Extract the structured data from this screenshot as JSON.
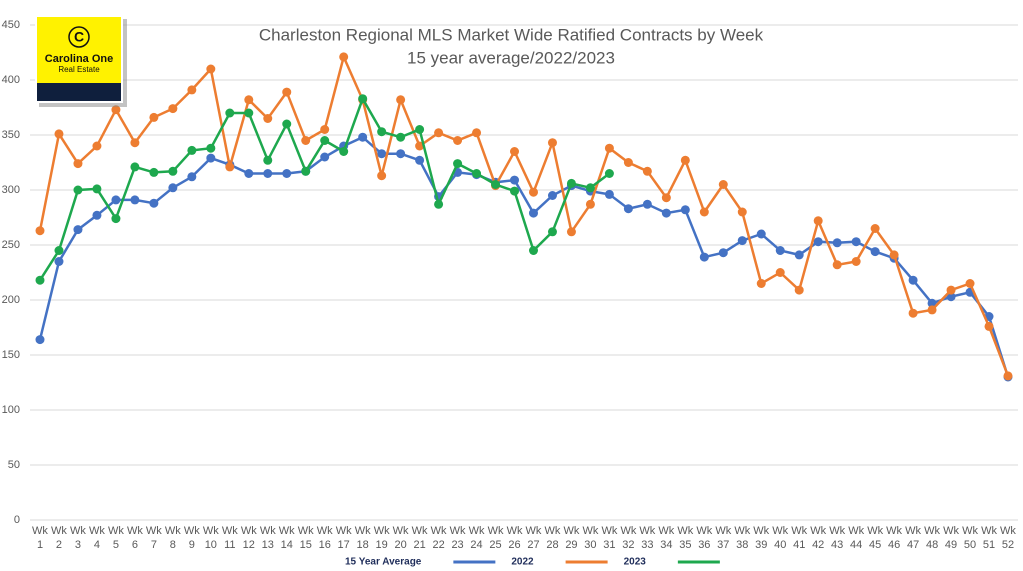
{
  "logo": {
    "mark": "C",
    "name": "Carolina One",
    "tagline": "Real Estate"
  },
  "chart_data": {
    "type": "line",
    "title": "Charleston Regional MLS Market Wide Ratified Contracts by Week",
    "subtitle": "15 year average/2022/2023",
    "categories": [
      "Wk 1",
      "Wk 2",
      "Wk 3",
      "Wk 4",
      "Wk 5",
      "Wk 6",
      "Wk 7",
      "Wk 8",
      "Wk 9",
      "Wk 10",
      "Wk 11",
      "Wk 12",
      "Wk 13",
      "Wk 14",
      "Wk 15",
      "Wk 16",
      "Wk 17",
      "Wk 18",
      "Wk 19",
      "Wk 20",
      "Wk 21",
      "Wk 22",
      "Wk 23",
      "Wk 24",
      "Wk 25",
      "Wk 26",
      "Wk 27",
      "Wk 28",
      "Wk 29",
      "Wk 30",
      "Wk 31",
      "Wk 32",
      "Wk 33",
      "Wk 34",
      "Wk 35",
      "Wk 36",
      "Wk 37",
      "Wk 38",
      "Wk 39",
      "Wk 40",
      "Wk 41",
      "Wk 42",
      "Wk 43",
      "Wk 44",
      "Wk 45",
      "Wk 46",
      "Wk 47",
      "Wk 48",
      "Wk 49",
      "Wk 50",
      "Wk 51",
      "Wk 52"
    ],
    "series": [
      {
        "name": "15 Year Average",
        "color": "#4472c4",
        "values": [
          164,
          235,
          264,
          277,
          291,
          291,
          288,
          302,
          312,
          329,
          323,
          315,
          315,
          315,
          317,
          330,
          340,
          348,
          333,
          333,
          327,
          294,
          316,
          314,
          307,
          309,
          279,
          295,
          304,
          299,
          296,
          283,
          287,
          279,
          282,
          239,
          243,
          254,
          260,
          245,
          241,
          253,
          252,
          253,
          244,
          238,
          218,
          197,
          203,
          207,
          185,
          130
        ]
      },
      {
        "name": "2022",
        "color": "#ed7d31",
        "values": [
          263,
          351,
          324,
          340,
          373,
          343,
          366,
          374,
          391,
          410,
          321,
          382,
          365,
          389,
          345,
          355,
          421,
          382,
          313,
          382,
          340,
          352,
          345,
          352,
          304,
          335,
          298,
          343,
          262,
          287,
          338,
          325,
          317,
          293,
          327,
          280,
          305,
          280,
          215,
          225,
          209,
          272,
          232,
          235,
          265,
          241,
          188,
          191,
          209,
          215,
          176,
          131
        ]
      },
      {
        "name": "2023",
        "color": "#1ea84e",
        "values": [
          218,
          245,
          300,
          301,
          274,
          321,
          316,
          317,
          336,
          338,
          370,
          370,
          327,
          360,
          317,
          345,
          335,
          383,
          353,
          348,
          355,
          287,
          324,
          315,
          305,
          299,
          245,
          262,
          306,
          302,
          315,
          null,
          null,
          null,
          null,
          null,
          null,
          null,
          null,
          null,
          null,
          null,
          null,
          null,
          null,
          null,
          null,
          null,
          null,
          null,
          null,
          null
        ]
      }
    ],
    "ylim": [
      0,
      450
    ],
    "yticks": [
      0,
      50,
      100,
      150,
      200,
      250,
      300,
      350,
      400,
      450
    ],
    "grid": true,
    "legend": "bottom"
  }
}
